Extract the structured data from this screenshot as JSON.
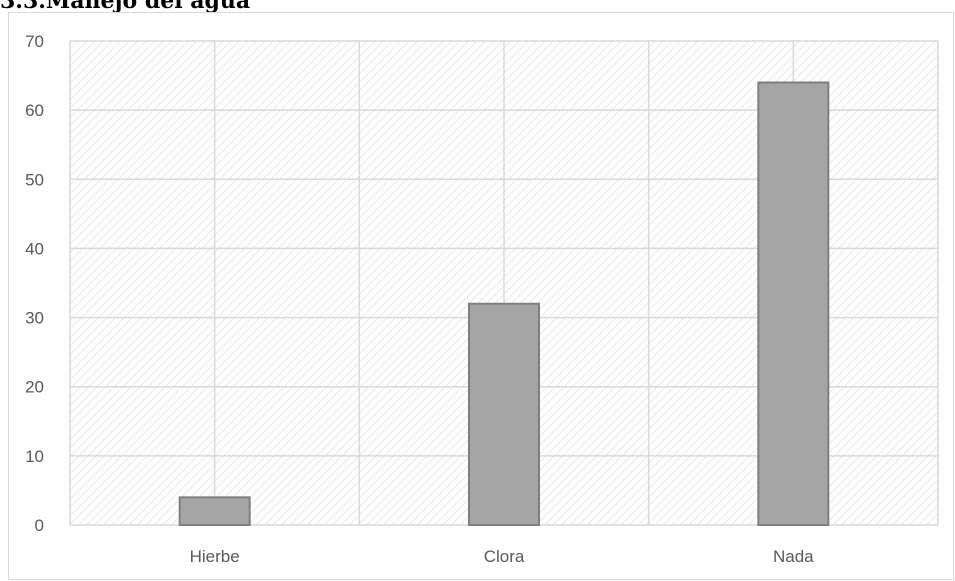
{
  "heading": "3.3.Manejo del agua",
  "chart_data": {
    "type": "bar",
    "title": "",
    "xlabel": "",
    "ylabel": "",
    "categories": [
      "Hierbe",
      "Clora",
      "Nada"
    ],
    "values": [
      4,
      32,
      64
    ],
    "ylim": [
      0,
      70
    ],
    "yticks": [
      0,
      10,
      20,
      30,
      40,
      50,
      60,
      70
    ],
    "grid": true,
    "plot_background": "diagonal-hatch",
    "colors": {
      "bar_fill": "#a5a5a5",
      "bar_stroke": "#7f7f7f",
      "grid": "#d9d9d9",
      "hatch": "#d9d9d9",
      "tick_label": "#595959"
    }
  }
}
